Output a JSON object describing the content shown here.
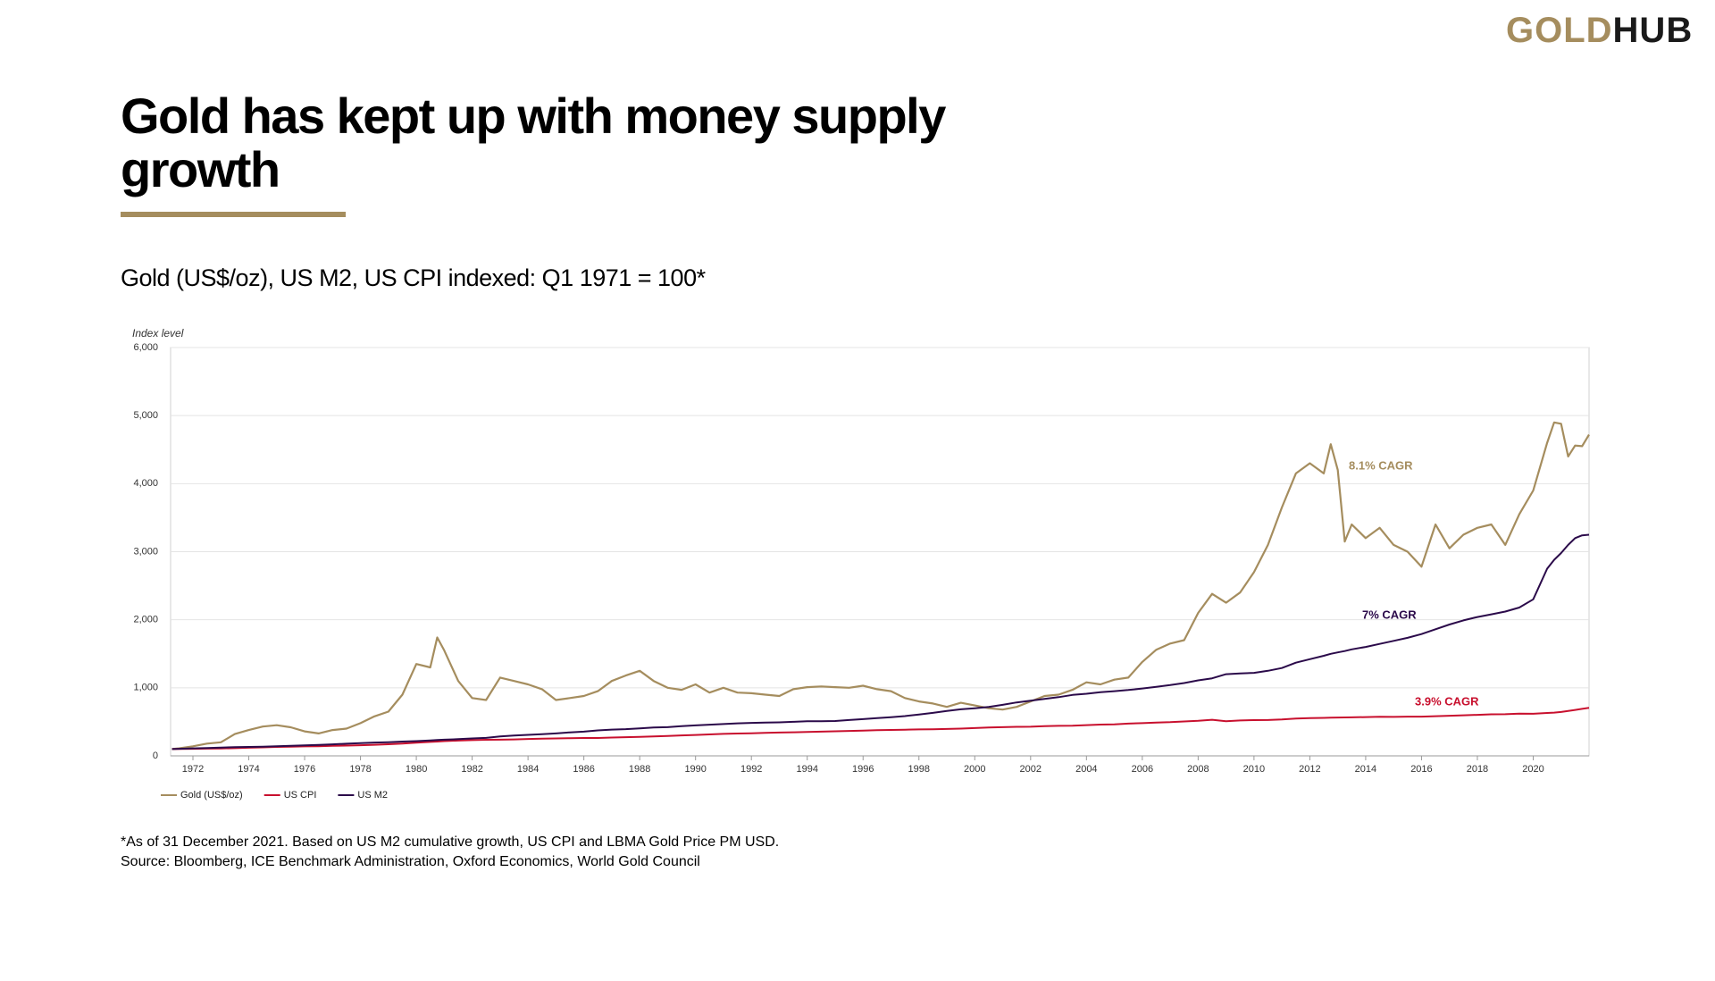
{
  "brand": {
    "first": "GOLD",
    "second": "HUB"
  },
  "heading": "Gold has kept up with money supply growth",
  "chart_data": {
    "type": "line",
    "title": "Gold (US$/oz), US M2, US CPI indexed: Q1 1971 = 100*",
    "y_label": "Index level",
    "x": [
      1971.25,
      1971.5,
      1972,
      1972.5,
      1973,
      1973.5,
      1974,
      1974.5,
      1975,
      1975.5,
      1976,
      1976.5,
      1977,
      1977.5,
      1978,
      1978.5,
      1979,
      1979.5,
      1980,
      1980.5,
      1980.75,
      1981,
      1981.5,
      1982,
      1982.5,
      1983,
      1983.5,
      1984,
      1984.5,
      1985,
      1985.5,
      1986,
      1986.5,
      1987,
      1987.5,
      1988,
      1988.5,
      1989,
      1989.5,
      1990,
      1990.5,
      1991,
      1991.5,
      1992,
      1992.5,
      1993,
      1993.5,
      1994,
      1994.5,
      1995,
      1995.5,
      1996,
      1996.5,
      1997,
      1997.5,
      1998,
      1998.5,
      1999,
      1999.5,
      2000,
      2000.5,
      2001,
      2001.5,
      2002,
      2002.5,
      2003,
      2003.5,
      2004,
      2004.5,
      2005,
      2005.5,
      2006,
      2006.5,
      2007,
      2007.5,
      2008,
      2008.5,
      2009,
      2009.5,
      2010,
      2010.5,
      2011,
      2011.5,
      2012,
      2012.5,
      2012.75,
      2013,
      2013.25,
      2013.5,
      2014,
      2014.5,
      2015,
      2015.5,
      2016,
      2016.5,
      2017,
      2017.5,
      2018,
      2018.5,
      2019,
      2019.5,
      2020,
      2020.5,
      2020.75,
      2021,
      2021.25,
      2021.5,
      2021.75,
      2022
    ],
    "series": [
      {
        "name": "Gold (US$/oz)",
        "color": "#a58d5e",
        "values": [
          100,
          110,
          140,
          180,
          200,
          320,
          380,
          430,
          450,
          420,
          360,
          330,
          380,
          400,
          480,
          580,
          650,
          900,
          1350,
          1300,
          1740,
          1550,
          1100,
          850,
          820,
          1150,
          1100,
          1050,
          980,
          820,
          850,
          880,
          950,
          1100,
          1180,
          1250,
          1100,
          1000,
          970,
          1050,
          930,
          1000,
          930,
          920,
          900,
          880,
          980,
          1010,
          1020,
          1010,
          1000,
          1030,
          980,
          950,
          850,
          800,
          770,
          720,
          780,
          740,
          700,
          680,
          720,
          800,
          880,
          900,
          970,
          1080,
          1050,
          1120,
          1150,
          1380,
          1560,
          1650,
          1700,
          2100,
          2380,
          2250,
          2400,
          2700,
          3100,
          3650,
          4150,
          4300,
          4150,
          4580,
          4200,
          3150,
          3400,
          3200,
          3350,
          3100,
          3000,
          2780,
          3400,
          3050,
          3250,
          3350,
          3400,
          3100,
          3550,
          3900,
          4600,
          4900,
          4880,
          4400,
          4560,
          4550,
          4720
        ]
      },
      {
        "name": "US CPI",
        "color": "#c8102e",
        "values": [
          100,
          101,
          104,
          106,
          109,
          113,
          119,
          125,
          131,
          135,
          139,
          142,
          147,
          151,
          156,
          163,
          171,
          181,
          193,
          205,
          210,
          216,
          225,
          231,
          236,
          238,
          242,
          248,
          252,
          256,
          260,
          262,
          263,
          269,
          275,
          279,
          286,
          292,
          300,
          307,
          315,
          323,
          328,
          332,
          338,
          343,
          347,
          351,
          356,
          361,
          366,
          371,
          377,
          381,
          385,
          388,
          391,
          395,
          401,
          408,
          417,
          422,
          427,
          428,
          436,
          441,
          444,
          451,
          460,
          464,
          474,
          480,
          490,
          495,
          505,
          515,
          530,
          510,
          520,
          525,
          527,
          535,
          548,
          555,
          558,
          561,
          563,
          564,
          566,
          570,
          574,
          572,
          577,
          576,
          583,
          590,
          596,
          602,
          610,
          612,
          620,
          618,
          630,
          635,
          645,
          660,
          675,
          690,
          705
        ]
      },
      {
        "name": "US M2",
        "color": "#2b0a4a",
        "values": [
          100,
          104,
          110,
          116,
          122,
          127,
          131,
          135,
          140,
          147,
          154,
          161,
          170,
          178,
          186,
          195,
          201,
          210,
          216,
          226,
          232,
          238,
          246,
          256,
          264,
          285,
          298,
          309,
          318,
          330,
          345,
          356,
          374,
          386,
          392,
          404,
          416,
          422,
          436,
          448,
          458,
          468,
          478,
          484,
          488,
          492,
          500,
          508,
          510,
          512,
          526,
          540,
          554,
          568,
          584,
          608,
          632,
          660,
          684,
          700,
          718,
          750,
          785,
          810,
          838,
          862,
          895,
          912,
          935,
          950,
          968,
          990,
          1015,
          1040,
          1070,
          1110,
          1140,
          1200,
          1210,
          1220,
          1250,
          1290,
          1370,
          1420,
          1470,
          1500,
          1520,
          1540,
          1565,
          1600,
          1645,
          1690,
          1735,
          1790,
          1860,
          1930,
          1990,
          2040,
          2080,
          2120,
          2180,
          2300,
          2750,
          2880,
          2980,
          3100,
          3200,
          3240,
          3250
        ]
      }
    ],
    "annotations": [
      {
        "text": "8.1% CAGR",
        "color": "#a58d5e"
      },
      {
        "text": "7% CAGR",
        "color": "#2b0a4a"
      },
      {
        "text": "3.9% CAGR",
        "color": "#c8102e"
      }
    ],
    "xlim": [
      1971.2,
      2022
    ],
    "xticks": [
      1972,
      1974,
      1976,
      1978,
      1980,
      1982,
      1984,
      1986,
      1988,
      1990,
      1992,
      1994,
      1996,
      1998,
      2000,
      2002,
      2004,
      2006,
      2008,
      2010,
      2012,
      2014,
      2016,
      2018,
      2020
    ],
    "ylim": [
      0,
      6000
    ],
    "yticks": [
      0,
      {
        "value": 1000,
        "label": "1,000"
      },
      {
        "value": 2000,
        "label": "2,000"
      },
      {
        "value": 3000,
        "label": "3,000"
      },
      {
        "value": 4000,
        "label": "4,000"
      },
      {
        "value": 5000,
        "label": "5,000"
      },
      {
        "value": 6000,
        "label": "6,000"
      }
    ],
    "grid": true,
    "legend": "bottom-left"
  },
  "notes": [
    "*As of 31 December 2021. Based on US M2 cumulative growth, US CPI and LBMA Gold Price PM USD.",
    "Source: Bloomberg, ICE Benchmark Administration, Oxford Economics, World Gold Council"
  ]
}
